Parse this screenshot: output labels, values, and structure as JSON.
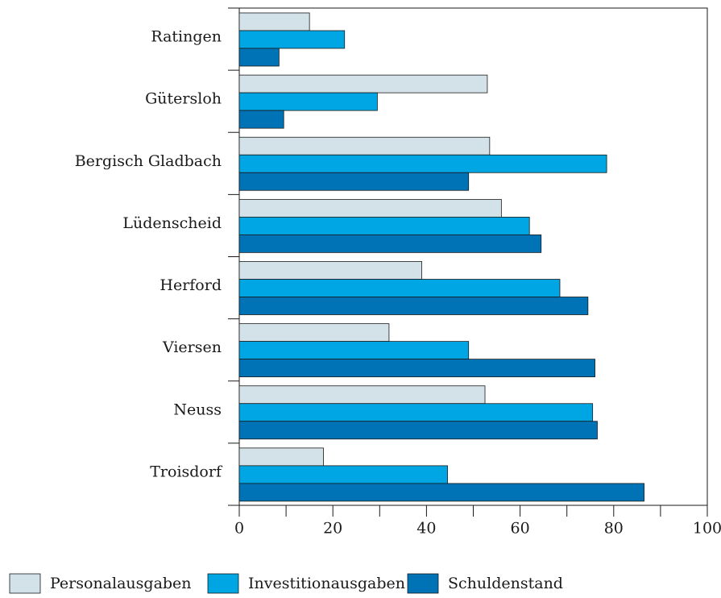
{
  "chart_data": {
    "type": "bar",
    "orientation": "horizontal",
    "categories": [
      "Ratingen",
      "Gütersloh",
      "Bergisch Gladbach",
      "Lüdenscheid",
      "Herford",
      "Viersen",
      "Neuss",
      "Troisdorf"
    ],
    "series": [
      {
        "name": "Personalausgaben",
        "color": "#d3e1e8",
        "values": [
          15,
          53,
          53.5,
          56,
          39,
          32,
          52.5,
          18
        ]
      },
      {
        "name": "Investitionausgaben",
        "color": "#00a6e4",
        "values": [
          22.5,
          29.5,
          78.5,
          62,
          68.5,
          49,
          75.5,
          44.5
        ]
      },
      {
        "name": "Schuldenstand",
        "color": "#0073b6",
        "values": [
          8.5,
          9.5,
          49,
          64.5,
          74.5,
          76,
          76.5,
          86.5
        ]
      }
    ],
    "xlim": [
      0,
      100
    ],
    "xticks": [
      "0",
      "20",
      "40",
      "60",
      "80",
      "100"
    ],
    "title": "",
    "xlabel": "",
    "ylabel": "",
    "grid": false,
    "legend_position": "bottom"
  }
}
